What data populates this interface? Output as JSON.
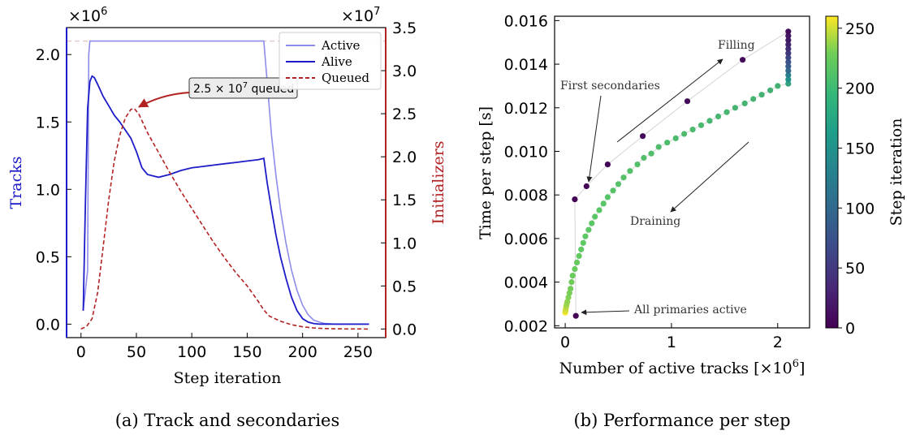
{
  "chart_data": [
    {
      "type": "line",
      "caption": "(a) Track and secondaries",
      "xlabel": "Step iteration",
      "ylabel_left": "Tracks",
      "ylabel_right": "Initializers",
      "left_multiplier": "×10",
      "left_multiplier_exp": "6",
      "right_multiplier": "×10",
      "right_multiplier_exp": "7",
      "xlim": [
        -13,
        275
      ],
      "ylim_left": [
        -0.1,
        2.2
      ],
      "ylim_right": [
        -0.1,
        3.5
      ],
      "xticks": [
        0,
        50,
        100,
        150,
        200,
        250
      ],
      "xtick_labels": [
        "0",
        "50",
        "100",
        "150",
        "200",
        "250"
      ],
      "yticks_left": [
        0.0,
        0.5,
        1.0,
        1.5,
        2.0
      ],
      "ytick_labels_left": [
        "0.0",
        "0.5",
        "1.0",
        "1.5",
        "2.0"
      ],
      "yticks_right": [
        0.0,
        0.5,
        1.0,
        1.5,
        2.0,
        2.5,
        3.0,
        3.5
      ],
      "ytick_labels_right": [
        "0.0",
        "0.5",
        "1.0",
        "1.5",
        "2.0",
        "2.5",
        "3.0",
        "3.5"
      ],
      "capacity_line": 2.1,
      "legend": {
        "position": "top-right"
      },
      "series": [
        {
          "name": "Active",
          "axis": "left",
          "color": "#8c8cea",
          "style": "solid",
          "x": [
            2,
            6,
            7,
            8,
            160,
            165,
            168,
            172,
            176,
            180,
            185,
            190,
            195,
            200,
            205,
            210,
            215,
            220,
            230,
            240,
            250,
            260
          ],
          "y": [
            0.1,
            0.4,
            2.0,
            2.1,
            2.1,
            2.1,
            1.8,
            1.4,
            1.1,
            0.85,
            0.6,
            0.4,
            0.25,
            0.14,
            0.07,
            0.03,
            0.015,
            0.005,
            0.0,
            0.0,
            0.0,
            0.0
          ]
        },
        {
          "name": "Alive",
          "axis": "left",
          "color": "#1c1cc8",
          "style": "solid",
          "x": [
            2,
            4,
            6,
            8,
            10,
            12,
            15,
            20,
            25,
            30,
            35,
            40,
            45,
            50,
            55,
            60,
            65,
            70,
            80,
            90,
            100,
            110,
            120,
            130,
            140,
            150,
            160,
            165,
            168,
            172,
            176,
            180,
            185,
            190,
            195,
            200,
            205,
            210,
            215,
            220,
            230,
            260
          ],
          "y": [
            0.1,
            0.9,
            1.6,
            1.8,
            1.84,
            1.83,
            1.78,
            1.69,
            1.62,
            1.55,
            1.5,
            1.44,
            1.38,
            1.28,
            1.16,
            1.11,
            1.1,
            1.09,
            1.11,
            1.14,
            1.16,
            1.17,
            1.18,
            1.19,
            1.2,
            1.21,
            1.22,
            1.23,
            1.05,
            0.85,
            0.66,
            0.5,
            0.34,
            0.2,
            0.1,
            0.04,
            0.015,
            0.005,
            0.0,
            0.0,
            0.0,
            0.0
          ]
        },
        {
          "name": "Queued",
          "axis": "right",
          "color": "#b22222",
          "style": "dashed",
          "x": [
            0,
            5,
            10,
            15,
            20,
            25,
            30,
            35,
            40,
            45,
            48,
            52,
            55,
            60,
            70,
            80,
            90,
            100,
            110,
            120,
            130,
            140,
            150,
            160,
            165,
            170,
            180,
            190,
            200,
            210,
            220,
            230,
            260
          ],
          "y": [
            0.0,
            0.03,
            0.12,
            0.42,
            0.95,
            1.5,
            1.95,
            2.25,
            2.45,
            2.55,
            2.56,
            2.5,
            2.42,
            2.28,
            2.05,
            1.82,
            1.6,
            1.4,
            1.2,
            1.0,
            0.82,
            0.65,
            0.5,
            0.32,
            0.22,
            0.15,
            0.09,
            0.05,
            0.025,
            0.012,
            0.006,
            0.002,
            0.0
          ]
        }
      ],
      "annotations": [
        {
          "text": "2.5 × 10",
          "sup": "7",
          "suffix": " queued",
          "x": 50,
          "y_right": 2.56
        }
      ]
    },
    {
      "type": "scatter",
      "caption": "(b) Performance per step",
      "xlabel": "Number of active tracks [×10",
      "xlabel_sup": "6",
      "xlabel_end": "]",
      "ylabel": "Time per step [s]",
      "colorbar_label": "Step iteration",
      "colorbar_range": [
        0,
        260
      ],
      "colorbar_ticks": [
        0,
        50,
        100,
        150,
        200,
        250
      ],
      "colorbar_tick_labels": [
        "0",
        "50",
        "100",
        "150",
        "200",
        "250"
      ],
      "xlim": [
        -0.1,
        2.3
      ],
      "ylim": [
        0.0019,
        0.0162
      ],
      "xticks": [
        0,
        1,
        2
      ],
      "xtick_labels": [
        "0",
        "1",
        "2"
      ],
      "yticks": [
        0.002,
        0.004,
        0.006,
        0.008,
        0.01,
        0.012,
        0.014,
        0.016
      ],
      "ytick_labels": [
        "0.002",
        "0.004",
        "0.006",
        "0.008",
        "0.010",
        "0.012",
        "0.014",
        "0.016"
      ],
      "colormap": [
        "#440154",
        "#3b528b",
        "#21918c",
        "#5ec962",
        "#fde725"
      ],
      "points": [
        {
          "x": 0.1,
          "y": 0.00245,
          "step": 1
        },
        {
          "x": 0.09,
          "y": 0.0078,
          "step": 3
        },
        {
          "x": 0.2,
          "y": 0.0084,
          "step": 4
        },
        {
          "x": 0.4,
          "y": 0.0094,
          "step": 5
        },
        {
          "x": 0.73,
          "y": 0.0107,
          "step": 6
        },
        {
          "x": 1.15,
          "y": 0.0123,
          "step": 7
        },
        {
          "x": 1.67,
          "y": 0.0142,
          "step": 8
        },
        {
          "x": 2.1,
          "y": 0.0155,
          "step": 10
        },
        {
          "x": 2.1,
          "y": 0.0153,
          "step": 15
        },
        {
          "x": 2.1,
          "y": 0.0151,
          "step": 20
        },
        {
          "x": 2.1,
          "y": 0.0149,
          "step": 28
        },
        {
          "x": 2.1,
          "y": 0.0147,
          "step": 36
        },
        {
          "x": 2.1,
          "y": 0.0145,
          "step": 45
        },
        {
          "x": 2.1,
          "y": 0.0143,
          "step": 55
        },
        {
          "x": 2.1,
          "y": 0.0141,
          "step": 65
        },
        {
          "x": 2.1,
          "y": 0.0139,
          "step": 75
        },
        {
          "x": 2.1,
          "y": 0.0137,
          "step": 90
        },
        {
          "x": 2.1,
          "y": 0.0135,
          "step": 110
        },
        {
          "x": 2.1,
          "y": 0.0133,
          "step": 130
        },
        {
          "x": 2.1,
          "y": 0.0131,
          "step": 150
        },
        {
          "x": 2.0,
          "y": 0.013,
          "step": 166
        },
        {
          "x": 1.93,
          "y": 0.0128,
          "step": 167
        },
        {
          "x": 1.85,
          "y": 0.0126,
          "step": 168
        },
        {
          "x": 1.77,
          "y": 0.0124,
          "step": 169
        },
        {
          "x": 1.69,
          "y": 0.0122,
          "step": 170
        },
        {
          "x": 1.6,
          "y": 0.012,
          "step": 171
        },
        {
          "x": 1.52,
          "y": 0.0118,
          "step": 172
        },
        {
          "x": 1.44,
          "y": 0.0116,
          "step": 173
        },
        {
          "x": 1.36,
          "y": 0.0114,
          "step": 174
        },
        {
          "x": 1.28,
          "y": 0.0112,
          "step": 175
        },
        {
          "x": 1.2,
          "y": 0.011,
          "step": 176
        },
        {
          "x": 1.12,
          "y": 0.0108,
          "step": 177
        },
        {
          "x": 1.04,
          "y": 0.0106,
          "step": 178
        },
        {
          "x": 0.96,
          "y": 0.0104,
          "step": 179
        },
        {
          "x": 0.88,
          "y": 0.0102,
          "step": 180
        },
        {
          "x": 0.81,
          "y": 0.0099,
          "step": 181
        },
        {
          "x": 0.74,
          "y": 0.0097,
          "step": 182
        },
        {
          "x": 0.68,
          "y": 0.0094,
          "step": 183
        },
        {
          "x": 0.61,
          "y": 0.0091,
          "step": 184
        },
        {
          "x": 0.55,
          "y": 0.0088,
          "step": 185
        },
        {
          "x": 0.5,
          "y": 0.0085,
          "step": 186
        },
        {
          "x": 0.45,
          "y": 0.0082,
          "step": 187
        },
        {
          "x": 0.4,
          "y": 0.0079,
          "step": 188
        },
        {
          "x": 0.36,
          "y": 0.0076,
          "step": 189
        },
        {
          "x": 0.32,
          "y": 0.0073,
          "step": 190
        },
        {
          "x": 0.28,
          "y": 0.007,
          "step": 191
        },
        {
          "x": 0.25,
          "y": 0.0067,
          "step": 192
        },
        {
          "x": 0.22,
          "y": 0.0064,
          "step": 193
        },
        {
          "x": 0.19,
          "y": 0.0061,
          "step": 194
        },
        {
          "x": 0.17,
          "y": 0.0058,
          "step": 195
        },
        {
          "x": 0.15,
          "y": 0.0055,
          "step": 196
        },
        {
          "x": 0.13,
          "y": 0.0052,
          "step": 197
        },
        {
          "x": 0.11,
          "y": 0.0049,
          "step": 198
        },
        {
          "x": 0.09,
          "y": 0.0046,
          "step": 199
        },
        {
          "x": 0.07,
          "y": 0.0043,
          "step": 200
        },
        {
          "x": 0.06,
          "y": 0.004,
          "step": 202
        },
        {
          "x": 0.05,
          "y": 0.0037,
          "step": 204
        },
        {
          "x": 0.04,
          "y": 0.0035,
          "step": 206
        },
        {
          "x": 0.03,
          "y": 0.0033,
          "step": 210
        },
        {
          "x": 0.02,
          "y": 0.0031,
          "step": 215
        },
        {
          "x": 0.015,
          "y": 0.003,
          "step": 220
        },
        {
          "x": 0.01,
          "y": 0.0029,
          "step": 228
        },
        {
          "x": 0.006,
          "y": 0.0028,
          "step": 236
        },
        {
          "x": 0.003,
          "y": 0.0027,
          "step": 244
        },
        {
          "x": 0.001,
          "y": 0.00265,
          "step": 252
        },
        {
          "x": 0.0,
          "y": 0.0026,
          "step": 260
        }
      ],
      "annotations": [
        {
          "text": "Filling"
        },
        {
          "text": "First secondaries"
        },
        {
          "text": "Draining"
        },
        {
          "text": "All primaries active"
        }
      ]
    }
  ]
}
